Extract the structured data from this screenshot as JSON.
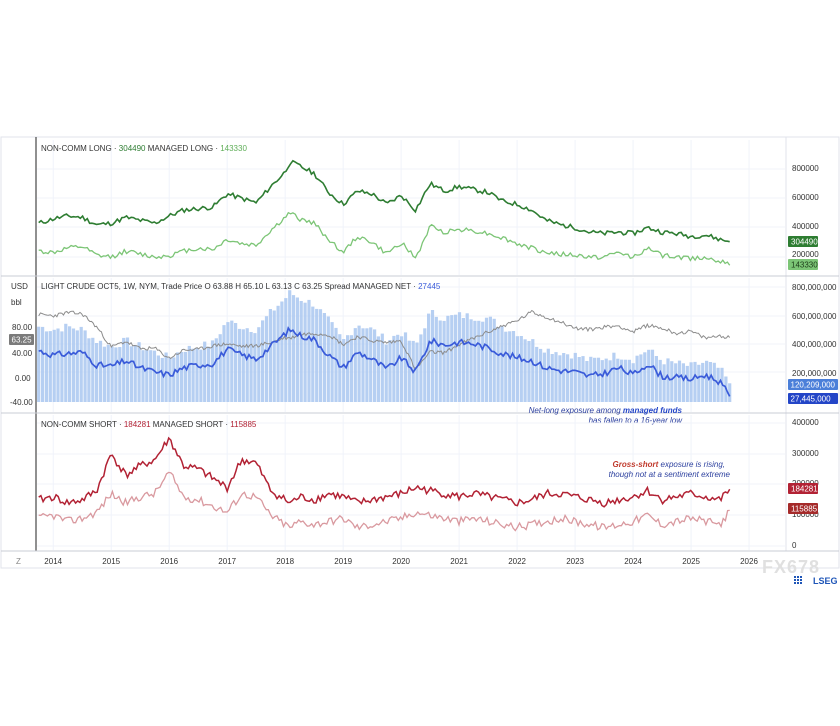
{
  "colors": {
    "long_dark": "#2e7d32",
    "long_light": "#7cc576",
    "short_dark": "#b22234",
    "short_light": "#d9999f",
    "net_line": "#3a5bd9",
    "net_hist": "#a9c7f0",
    "price": "#8c8c8c",
    "annotation": "#2b3f9e",
    "annotation_red": "#c0392b",
    "watermark": "#e8e8e8",
    "lseg": "#1f56b8"
  },
  "panels": {
    "long": {
      "legend": {
        "label1": "NON-COMM LONG",
        "value1": "304490",
        "label2": "MANAGED LONG",
        "value2": "143330"
      },
      "axis_ticks": [
        "800000",
        "600000",
        "400000",
        "200000"
      ],
      "badge_dark": "304490",
      "badge_light": "143330"
    },
    "net": {
      "usd_label": "USD",
      "bbl_label": "bbl",
      "legend": {
        "title": "LIGHT CRUDE OCT5, 1W, NYM, Trade Price",
        "o_label": "O",
        "o_value": "63.88",
        "h_label": "H",
        "h_value": "65.10",
        "l_label": "L",
        "l_value": "63.13",
        "c_label": "C",
        "c_value": "63.25",
        "spread_label": "Spread",
        "net_label": "MANAGED NET",
        "net_value": "27445"
      },
      "left_ticks": [
        "80.00",
        "40.00",
        "0.00",
        "-40.00"
      ],
      "price_badge": "63.25",
      "right_ticks": [
        "800,000,000",
        "600,000,000",
        "400,000,000",
        "200,000,000"
      ],
      "badge_hist": "120,209,000",
      "badge_net": "27,445,000",
      "annotation": {
        "line1_a": "Net-long exposure among ",
        "line1_b": "managed funds",
        "line2": "has fallen to a 16-year low"
      }
    },
    "short": {
      "legend": {
        "label1": "NON-COMM SHORT",
        "value1": "184281",
        "label2": "MANAGED SHORT",
        "value2": "115885"
      },
      "axis_ticks": [
        "400000",
        "300000",
        "200000",
        "100000",
        "0"
      ],
      "badge_dark": "184281",
      "badge_light": "115885",
      "annotation": {
        "line1_a": "Gross-short",
        "line1_b": " exposure is rising,",
        "line2": "though not at a sentiment extreme"
      }
    }
  },
  "x_axis": {
    "years": [
      "2014",
      "2015",
      "2016",
      "2017",
      "2018",
      "2019",
      "2020",
      "2021",
      "2022",
      "2023",
      "2024",
      "2025",
      "2026"
    ],
    "zoom_label": "Z"
  },
  "watermark": "FX678",
  "brand": "LSEG",
  "chart_data": [
    {
      "type": "line",
      "title": "",
      "x": [
        "2013-10",
        "2014-01",
        "2014-04",
        "2014-07",
        "2014-10",
        "2015-01",
        "2015-04",
        "2015-07",
        "2015-10",
        "2016-01",
        "2016-04",
        "2016-07",
        "2016-10",
        "2017-01",
        "2017-04",
        "2017-07",
        "2017-10",
        "2018-01",
        "2018-02",
        "2018-04",
        "2018-07",
        "2018-10",
        "2019-01",
        "2019-04",
        "2019-07",
        "2019-10",
        "2020-01",
        "2020-04",
        "2020-07",
        "2020-10",
        "2021-01",
        "2021-04",
        "2021-07",
        "2021-10",
        "2022-01",
        "2022-04",
        "2022-07",
        "2022-10",
        "2023-01",
        "2023-04",
        "2023-07",
        "2023-10",
        "2024-01",
        "2024-04",
        "2024-07",
        "2024-10",
        "2025-01",
        "2025-04",
        "2025-07",
        "2025-09"
      ],
      "series": [
        {
          "name": "NON-COMM LONG",
          "values": [
            430000,
            460000,
            480000,
            470000,
            420000,
            430000,
            470000,
            450000,
            430000,
            480000,
            520000,
            530000,
            540000,
            630000,
            600000,
            570000,
            680000,
            780000,
            850000,
            820000,
            770000,
            640000,
            560000,
            650000,
            630000,
            560000,
            620000,
            520000,
            700000,
            650000,
            680000,
            660000,
            640000,
            580000,
            560000,
            520000,
            450000,
            420000,
            400000,
            370000,
            360000,
            370000,
            360000,
            400000,
            370000,
            360000,
            340000,
            350000,
            320000,
            304490
          ]
        },
        {
          "name": "MANAGED LONG",
          "values": [
            240000,
            230000,
            260000,
            270000,
            210000,
            200000,
            240000,
            220000,
            200000,
            210000,
            240000,
            260000,
            250000,
            320000,
            290000,
            280000,
            380000,
            470000,
            500000,
            460000,
            430000,
            320000,
            230000,
            340000,
            300000,
            220000,
            300000,
            190000,
            410000,
            370000,
            390000,
            380000,
            360000,
            330000,
            290000,
            260000,
            230000,
            220000,
            210000,
            200000,
            200000,
            230000,
            200000,
            260000,
            210000,
            200000,
            190000,
            200000,
            170000,
            143330
          ]
        }
      ],
      "ylim": [
        100000,
        900000
      ]
    },
    {
      "type": "line",
      "title": "LIGHT CRUDE OCT5, 1W, NYM, Trade Price",
      "x": [
        "2013-10",
        "2014-01",
        "2014-04",
        "2014-07",
        "2014-10",
        "2015-01",
        "2015-04",
        "2015-07",
        "2015-10",
        "2016-01",
        "2016-04",
        "2016-07",
        "2016-10",
        "2017-01",
        "2017-04",
        "2017-07",
        "2017-10",
        "2018-01",
        "2018-02",
        "2018-04",
        "2018-07",
        "2018-10",
        "2019-01",
        "2019-04",
        "2019-07",
        "2019-10",
        "2020-01",
        "2020-04",
        "2020-07",
        "2020-10",
        "2021-01",
        "2021-04",
        "2021-07",
        "2021-10",
        "2022-01",
        "2022-04",
        "2022-07",
        "2022-10",
        "2023-01",
        "2023-04",
        "2023-07",
        "2023-10",
        "2024-01",
        "2024-04",
        "2024-07",
        "2024-10",
        "2025-01",
        "2025-04",
        "2025-07",
        "2025-09"
      ],
      "series": [
        {
          "name": "Trade Price",
          "axis": "left",
          "values": [
            100,
            98,
            103,
            101,
            80,
            48,
            57,
            45,
            46,
            30,
            43,
            44,
            50,
            53,
            49,
            50,
            55,
            63,
            62,
            68,
            70,
            68,
            52,
            65,
            58,
            55,
            58,
            12,
            40,
            39,
            52,
            62,
            72,
            82,
            90,
            104,
            96,
            88,
            78,
            76,
            80,
            82,
            72,
            83,
            78,
            70,
            73,
            62,
            66,
            63.25
          ]
        },
        {
          "name": "MANAGED NET",
          "axis": "right",
          "values": [
            350000000,
            320000000,
            330000000,
            340000000,
            250000000,
            240000000,
            280000000,
            230000000,
            200000000,
            180000000,
            230000000,
            250000000,
            260000000,
            360000000,
            320000000,
            290000000,
            380000000,
            470000000,
            500000000,
            460000000,
            430000000,
            320000000,
            230000000,
            340000000,
            290000000,
            220000000,
            300000000,
            200000000,
            420000000,
            390000000,
            410000000,
            400000000,
            370000000,
            330000000,
            300000000,
            280000000,
            230000000,
            210000000,
            200000000,
            170000000,
            190000000,
            230000000,
            180000000,
            260000000,
            170000000,
            160000000,
            150000000,
            180000000,
            130000000,
            27445000
          ]
        },
        {
          "name": "Spread",
          "axis": "right",
          "values": [
            520000000,
            500000000,
            520000000,
            500000000,
            420000000,
            380000000,
            420000000,
            380000000,
            340000000,
            300000000,
            360000000,
            380000000,
            400000000,
            560000000,
            520000000,
            500000000,
            620000000,
            720000000,
            760000000,
            720000000,
            680000000,
            560000000,
            420000000,
            540000000,
            500000000,
            420000000,
            480000000,
            380000000,
            620000000,
            580000000,
            600000000,
            590000000,
            580000000,
            520000000,
            480000000,
            420000000,
            360000000,
            340000000,
            320000000,
            280000000,
            300000000,
            320000000,
            290000000,
            360000000,
            280000000,
            260000000,
            240000000,
            270000000,
            220000000,
            120209000
          ]
        }
      ],
      "ylim": [
        -40,
        100
      ]
    },
    {
      "type": "line",
      "title": "",
      "x": [
        "2013-10",
        "2014-01",
        "2014-04",
        "2014-07",
        "2014-10",
        "2015-01",
        "2015-04",
        "2015-07",
        "2015-10",
        "2016-01",
        "2016-04",
        "2016-07",
        "2016-10",
        "2017-01",
        "2017-04",
        "2017-07",
        "2017-10",
        "2018-01",
        "2018-02",
        "2018-04",
        "2018-07",
        "2018-10",
        "2019-01",
        "2019-04",
        "2019-07",
        "2019-10",
        "2020-01",
        "2020-04",
        "2020-07",
        "2020-10",
        "2021-01",
        "2021-04",
        "2021-07",
        "2021-10",
        "2022-01",
        "2022-04",
        "2022-07",
        "2022-10",
        "2023-01",
        "2023-04",
        "2023-07",
        "2023-10",
        "2024-01",
        "2024-04",
        "2024-07",
        "2024-10",
        "2025-01",
        "2025-04",
        "2025-07",
        "2025-09"
      ],
      "series": [
        {
          "name": "NON-COMM SHORT",
          "values": [
            150000,
            160000,
            140000,
            150000,
            180000,
            300000,
            230000,
            260000,
            280000,
            350000,
            260000,
            250000,
            220000,
            190000,
            280000,
            270000,
            180000,
            150000,
            140000,
            160000,
            150000,
            170000,
            160000,
            140000,
            150000,
            160000,
            170000,
            190000,
            180000,
            170000,
            160000,
            170000,
            160000,
            150000,
            140000,
            150000,
            170000,
            170000,
            160000,
            150000,
            140000,
            150000,
            160000,
            180000,
            150000,
            160000,
            170000,
            160000,
            150000,
            184281
          ]
        },
        {
          "name": "MANAGED SHORT",
          "values": [
            90000,
            100000,
            80000,
            90000,
            110000,
            170000,
            140000,
            160000,
            170000,
            240000,
            160000,
            150000,
            130000,
            110000,
            170000,
            160000,
            100000,
            70000,
            60000,
            80000,
            70000,
            80000,
            90000,
            60000,
            70000,
            80000,
            90000,
            110000,
            100000,
            90000,
            80000,
            90000,
            80000,
            70000,
            60000,
            70000,
            80000,
            90000,
            80000,
            70000,
            60000,
            70000,
            80000,
            100000,
            70000,
            80000,
            90000,
            80000,
            70000,
            115885
          ]
        }
      ],
      "ylim": [
        0,
        400000
      ]
    }
  ]
}
